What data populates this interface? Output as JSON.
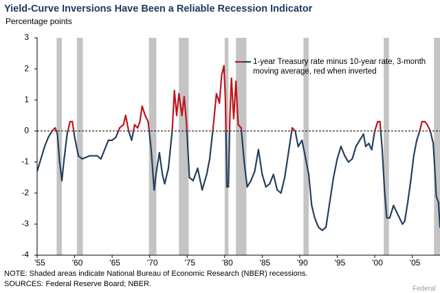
{
  "chart_data": {
    "type": "line",
    "title": "Yield-Curve Inversions Have Been a Reliable Recession Indicator",
    "y_label": "Percentage points",
    "x": [
      1955.0,
      1955.5,
      1956.0,
      1956.5,
      1957.0,
      1957.4,
      1957.7,
      1958.0,
      1958.3,
      1958.6,
      1959.0,
      1959.4,
      1959.7,
      1960.0,
      1960.5,
      1961.0,
      1962.0,
      1963.0,
      1963.5,
      1964.0,
      1964.5,
      1965.0,
      1965.5,
      1966.0,
      1966.5,
      1966.8,
      1967.2,
      1967.6,
      1968.0,
      1968.4,
      1968.7,
      1969.0,
      1969.4,
      1969.8,
      1970.2,
      1970.6,
      1970.9,
      1971.3,
      1971.7,
      1972.0,
      1972.5,
      1973.0,
      1973.3,
      1973.6,
      1973.9,
      1974.3,
      1974.6,
      1974.9,
      1975.3,
      1975.8,
      1976.4,
      1977.0,
      1977.6,
      1978.0,
      1978.5,
      1978.9,
      1979.3,
      1979.6,
      1979.9,
      1980.1,
      1980.3,
      1980.5,
      1980.7,
      1980.9,
      1981.2,
      1981.5,
      1981.8,
      1982.2,
      1982.6,
      1983.0,
      1983.5,
      1984.0,
      1984.5,
      1985.0,
      1985.5,
      1986.0,
      1986.5,
      1987.0,
      1987.5,
      1988.0,
      1988.5,
      1989.0,
      1989.4,
      1989.8,
      1990.3,
      1990.8,
      1991.2,
      1991.6,
      1992.0,
      1992.5,
      1993.0,
      1993.5,
      1994.0,
      1994.5,
      1995.0,
      1995.5,
      1996.0,
      1996.5,
      1997.0,
      1997.5,
      1998.0,
      1998.5,
      1998.8,
      1999.2,
      1999.6,
      2000.0,
      2000.4,
      2000.7,
      2001.0,
      2001.3,
      2001.6,
      2002.0,
      2002.5,
      2002.9,
      2003.3,
      2003.7,
      2004.0,
      2004.4,
      2004.8,
      2005.2,
      2005.6,
      2006.0,
      2006.3,
      2006.7,
      2007.0,
      2007.4,
      2007.8,
      2008.0,
      2008.2,
      2008.5,
      2008.7
    ],
    "series": [
      {
        "name": "1-year Treasury rate minus 10-year rate, 3-month moving average, red when inverted",
        "color": "#243f5c",
        "inverted_color": "#c0141e",
        "values": [
          -1.3,
          -0.9,
          -0.5,
          -0.2,
          0.0,
          0.1,
          -0.1,
          -1.0,
          -1.6,
          -0.9,
          -0.1,
          0.3,
          0.3,
          -0.2,
          -0.8,
          -0.9,
          -0.8,
          -0.8,
          -0.9,
          -0.6,
          -0.3,
          -0.3,
          -0.2,
          0.1,
          0.2,
          0.5,
          0.0,
          -0.3,
          0.2,
          0.1,
          0.3,
          0.8,
          0.5,
          0.3,
          -0.6,
          -1.9,
          -1.3,
          -0.7,
          -1.4,
          -1.7,
          -1.2,
          0.0,
          1.3,
          0.5,
          1.2,
          0.5,
          1.1,
          0.3,
          -1.5,
          -1.6,
          -1.2,
          -1.9,
          -1.4,
          -0.9,
          0.2,
          1.2,
          0.9,
          1.8,
          2.1,
          1.0,
          -1.8,
          -1.8,
          0.5,
          1.7,
          0.4,
          1.6,
          0.2,
          0.1,
          -1.0,
          -1.8,
          -1.6,
          -1.3,
          -0.6,
          -1.4,
          -1.8,
          -1.7,
          -1.4,
          -1.9,
          -2.0,
          -1.5,
          -0.7,
          0.1,
          0.0,
          -0.5,
          -0.3,
          -0.9,
          -1.4,
          -2.4,
          -2.8,
          -3.1,
          -3.2,
          -3.1,
          -2.3,
          -1.5,
          -0.9,
          -0.5,
          -0.8,
          -1.0,
          -0.9,
          -0.5,
          -0.3,
          -0.1,
          -0.5,
          -0.4,
          -0.6,
          0.0,
          0.3,
          0.3,
          -0.6,
          -1.9,
          -2.8,
          -2.8,
          -2.4,
          -2.6,
          -2.8,
          -3.0,
          -2.9,
          -2.3,
          -1.6,
          -0.8,
          -0.3,
          0.0,
          0.3,
          0.3,
          0.2,
          0.0,
          -0.4,
          -1.2,
          -2.1,
          -2.3,
          -3.1
        ]
      }
    ],
    "xlim": [
      1955,
      2008.7
    ],
    "ylim": [
      -4,
      3
    ],
    "xticks": [
      {
        "value": 1955,
        "label": "'55"
      },
      {
        "value": 1960,
        "label": "'60"
      },
      {
        "value": 1965,
        "label": "'65"
      },
      {
        "value": 1970,
        "label": "'70"
      },
      {
        "value": 1975,
        "label": "'75"
      },
      {
        "value": 1980,
        "label": "'80"
      },
      {
        "value": 1985,
        "label": "'85"
      },
      {
        "value": 1990,
        "label": "'90"
      },
      {
        "value": 1995,
        "label": "'95"
      },
      {
        "value": 2000,
        "label": "'00"
      },
      {
        "value": 2005,
        "label": "'05"
      }
    ],
    "yticks": [
      3,
      2,
      1,
      0,
      -1,
      -2,
      -3,
      -4
    ],
    "zero_line": true,
    "recessions": [
      [
        1957.6,
        1958.3
      ],
      [
        1960.3,
        1961.1
      ],
      [
        1969.9,
        1970.9
      ],
      [
        1973.9,
        1975.2
      ],
      [
        1980.0,
        1980.5
      ],
      [
        1981.5,
        1982.9
      ],
      [
        1990.5,
        1991.2
      ],
      [
        2001.2,
        2001.9
      ],
      [
        2007.9,
        2009.5
      ]
    ],
    "recession_color": "#c4c4c4",
    "legend": "top-right",
    "note": "NOTE: Shaded areas indicate National Bureau of Economic Research (NBER) recessions.",
    "sources": "SOURCES: Federal Reserve Board; NBER.",
    "watermark": "Federal"
  }
}
